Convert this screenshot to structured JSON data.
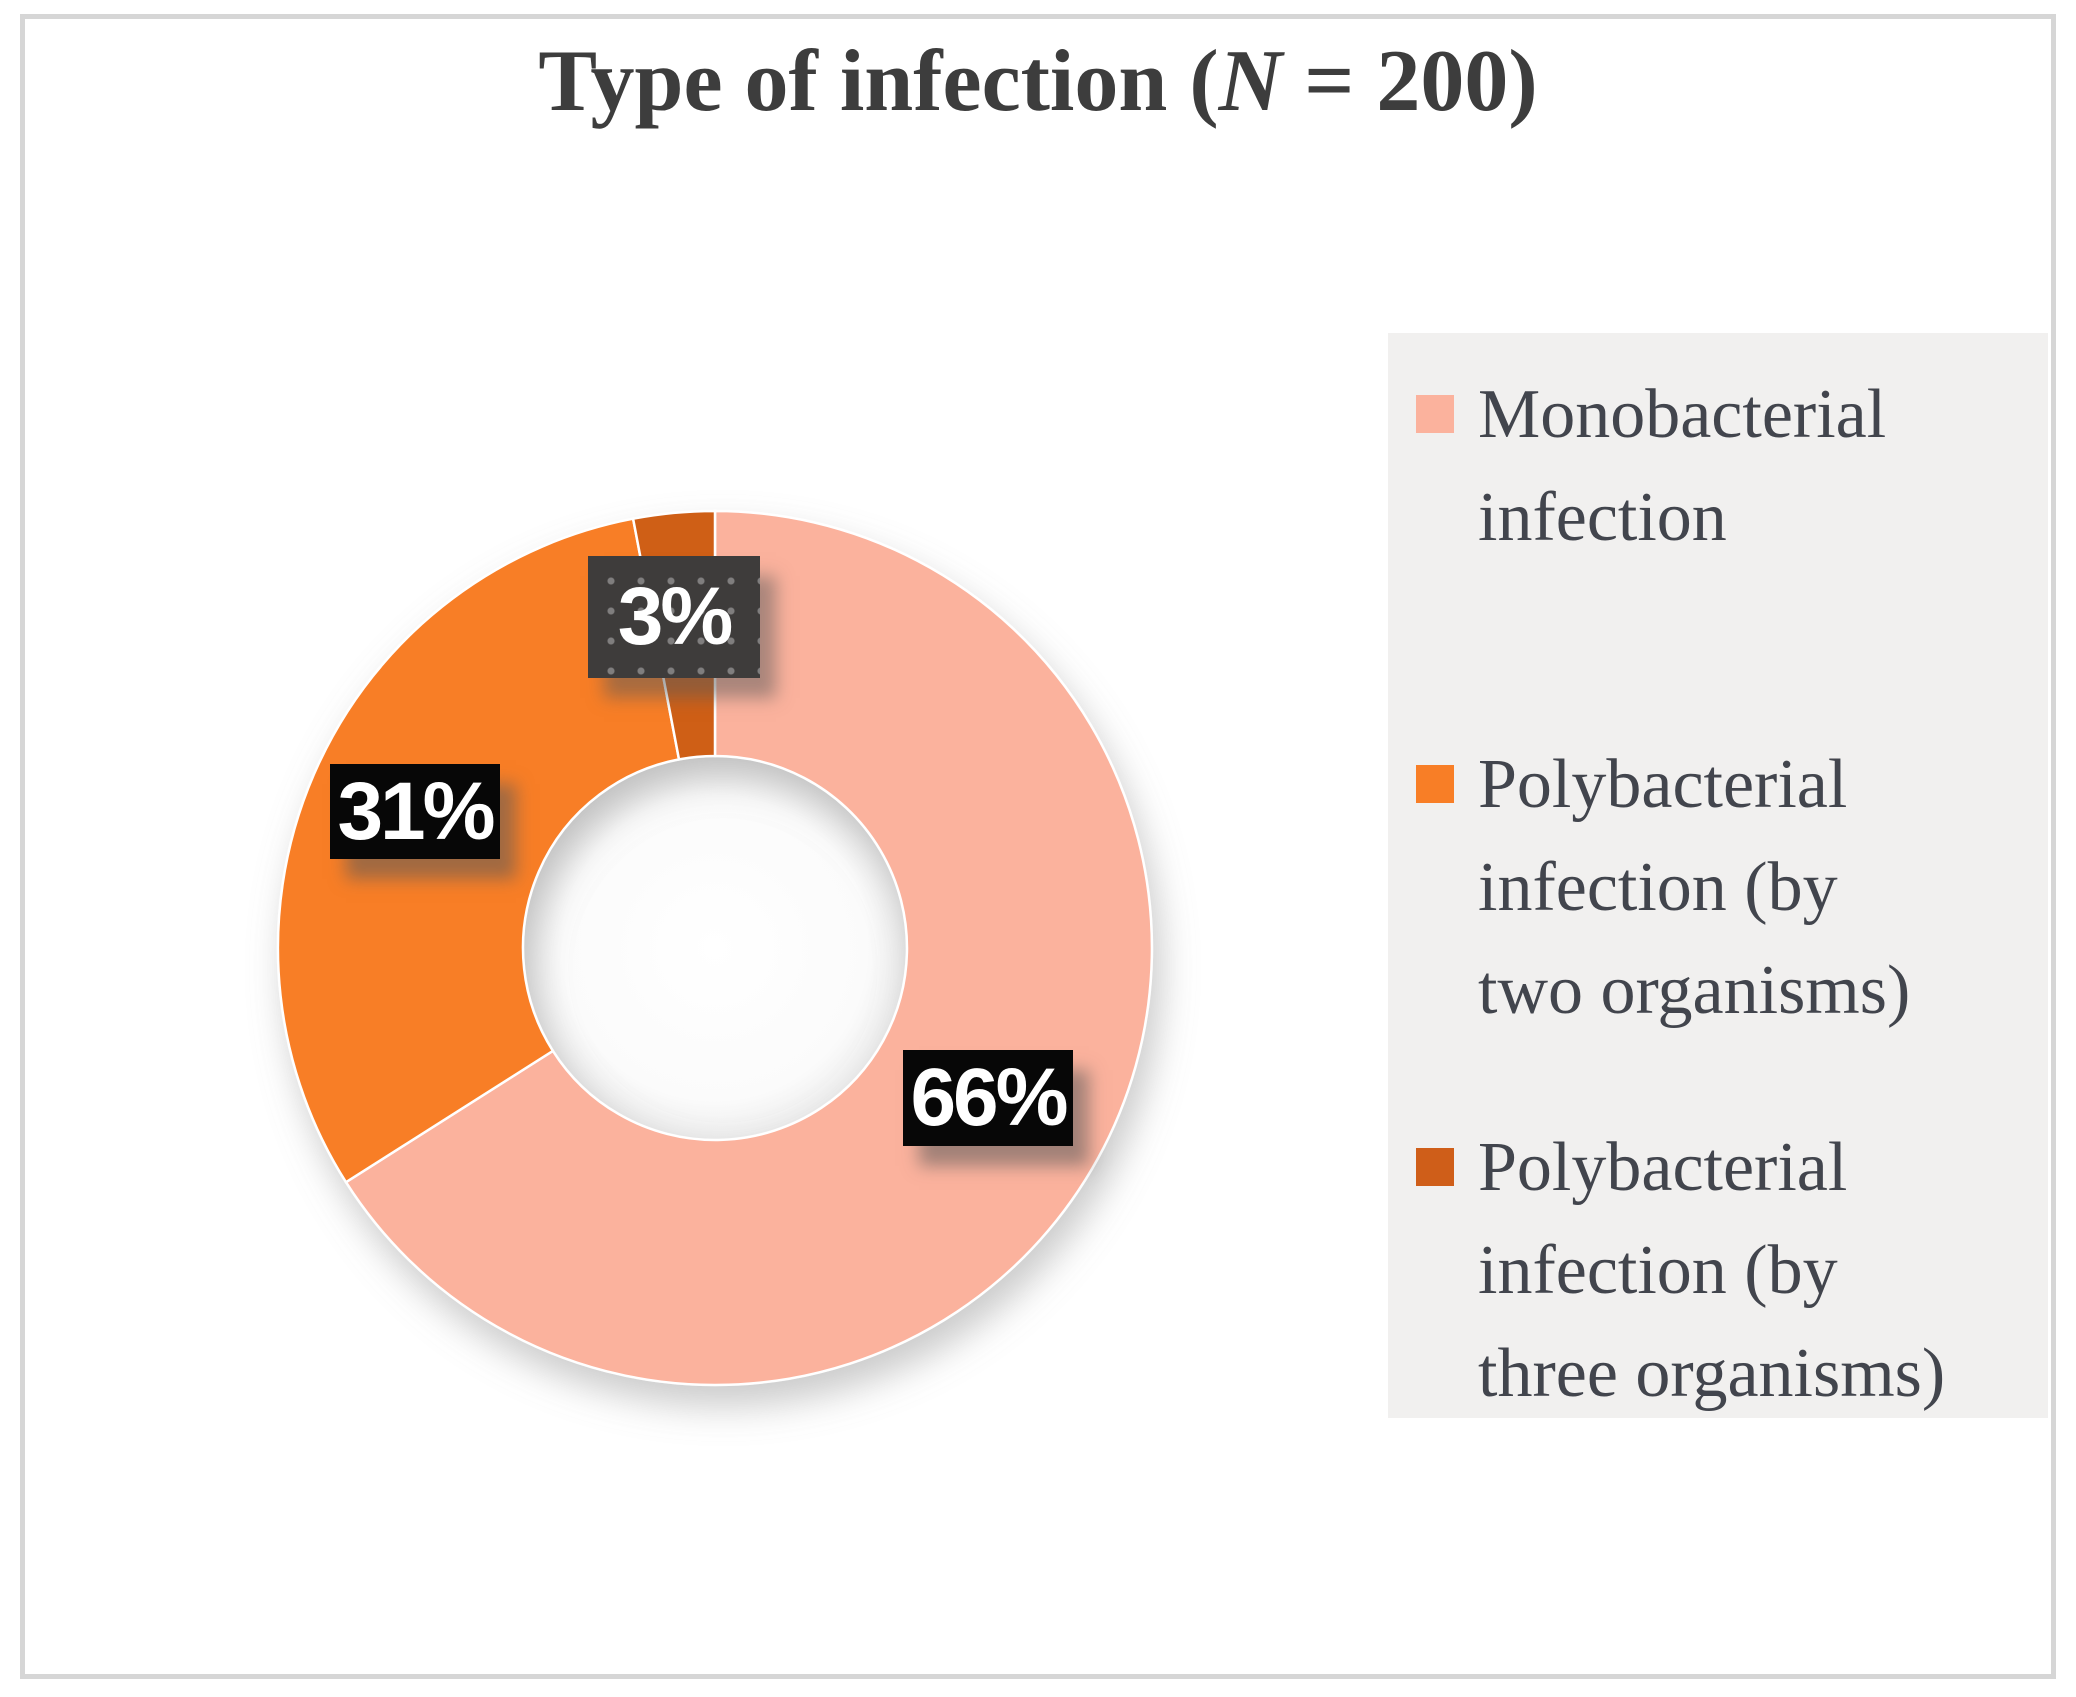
{
  "title": {
    "before": "Type of infection (",
    "n_italic": "N",
    "after": " = 200)"
  },
  "chart_data": {
    "type": "pie",
    "subtype": "donut",
    "title": "Type of infection (N = 200)",
    "sample_size_n": 200,
    "categories": [
      "Monobacterial infection",
      "Polybacterial infection (by two organisms)",
      "Polybacterial infection (by three organisms)"
    ],
    "values": [
      66,
      31,
      3
    ],
    "unit": "percent",
    "data_labels": [
      "66%",
      "31%",
      "3%"
    ],
    "colors": [
      "#FBB29D",
      "#F87E26",
      "#CF5E19"
    ],
    "hole_ratio": 0.44,
    "start_angle_deg": 0,
    "direction": "clockwise",
    "legend_position": "right",
    "grid": false
  },
  "legend": {
    "items": [
      {
        "label": "Monobacterial\ninfection",
        "color": "#FBB29D"
      },
      {
        "label": "Polybacterial\ninfection (by\ntwo organisms)",
        "color": "#F87E26"
      },
      {
        "label": "Polybacterial\ninfection (by\nthree organisms)",
        "color": "#CF5E19"
      }
    ]
  }
}
